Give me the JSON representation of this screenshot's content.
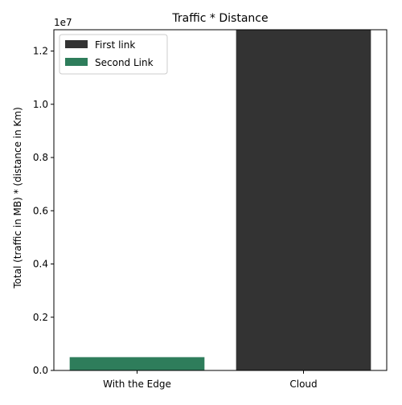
{
  "chart_data": {
    "type": "bar",
    "stacked": true,
    "title": "Traffic * Distance",
    "xlabel": "",
    "ylabel": "Total (traffic in MB) * (distance in Km)",
    "y_offset_label": "1e7",
    "categories": [
      "With the Edge",
      "Cloud"
    ],
    "series": [
      {
        "name": "First link",
        "values": [
          0,
          12800000
        ],
        "color": "#333333"
      },
      {
        "name": "Second Link",
        "values": [
          500000,
          0
        ],
        "color": "#2e7d5b"
      }
    ],
    "ylim": [
      0,
      12800000
    ],
    "yticks": [
      0,
      2000000,
      4000000,
      6000000,
      8000000,
      10000000,
      12000000
    ],
    "ytick_labels": [
      "0.0",
      "0.2",
      "0.4",
      "0.6",
      "0.8",
      "1.0",
      "1.2"
    ],
    "grid": false,
    "legend_position": "top-left"
  }
}
